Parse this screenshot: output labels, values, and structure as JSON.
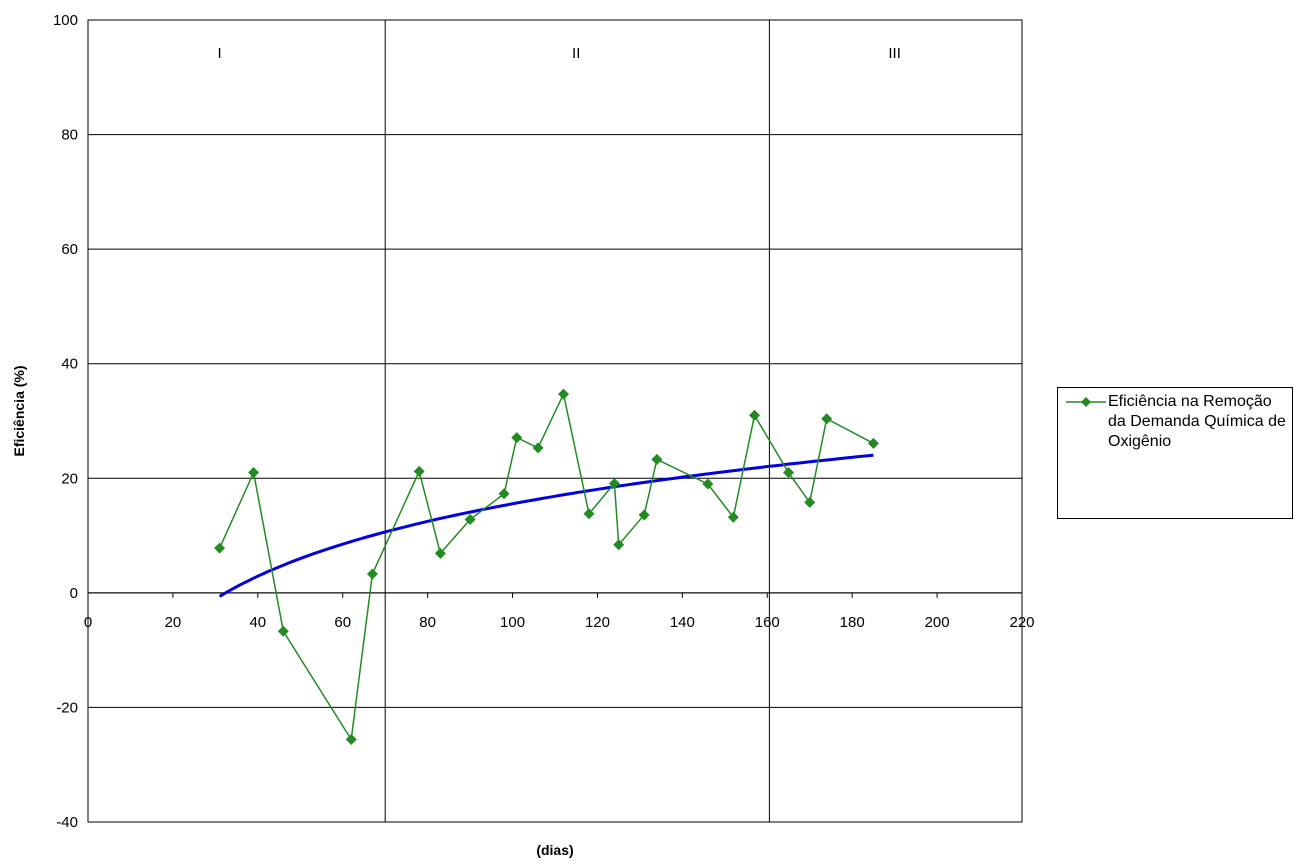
{
  "chart_data": {
    "type": "line",
    "title": "",
    "xlabel": "(dias)",
    "ylabel": "Eficiência (%)",
    "xlim": [
      0,
      220
    ],
    "ylim": [
      -40,
      100
    ],
    "xticks": [
      0,
      20,
      40,
      60,
      80,
      100,
      120,
      140,
      160,
      180,
      200,
      220
    ],
    "yticks": [
      -40,
      -20,
      0,
      20,
      40,
      60,
      80,
      100
    ],
    "grid": "horizontal",
    "legend_position": "right",
    "phase_boundaries": [
      70,
      160.5
    ],
    "phase_labels": [
      {
        "text": "I",
        "x": 31
      },
      {
        "text": "II",
        "x": 115
      },
      {
        "text": "III",
        "x": 190
      }
    ],
    "series": [
      {
        "name": "Eficiência na Remoção da Demanda Química de Oxigênio",
        "color": "#228B22",
        "marker": "diamond",
        "x": [
          31,
          39,
          46,
          62,
          67,
          78,
          83,
          90,
          98,
          101,
          106,
          112,
          118,
          124,
          125,
          131,
          134,
          146,
          152,
          157,
          165,
          170,
          174,
          185
        ],
        "y": [
          7.8,
          21,
          -6.7,
          -25.6,
          3.3,
          21.2,
          6.9,
          12.8,
          17.3,
          27.1,
          25.3,
          34.7,
          13.8,
          19.1,
          8.4,
          13.6,
          23.3,
          19,
          13.2,
          31,
          21,
          15.8,
          30.4,
          26.1
        ]
      },
      {
        "type": "trendline",
        "fit": "logarithmic",
        "color": "#0000E0",
        "x_range": [
          31,
          185
        ],
        "a": 13.8,
        "b": -48.0
      }
    ]
  }
}
